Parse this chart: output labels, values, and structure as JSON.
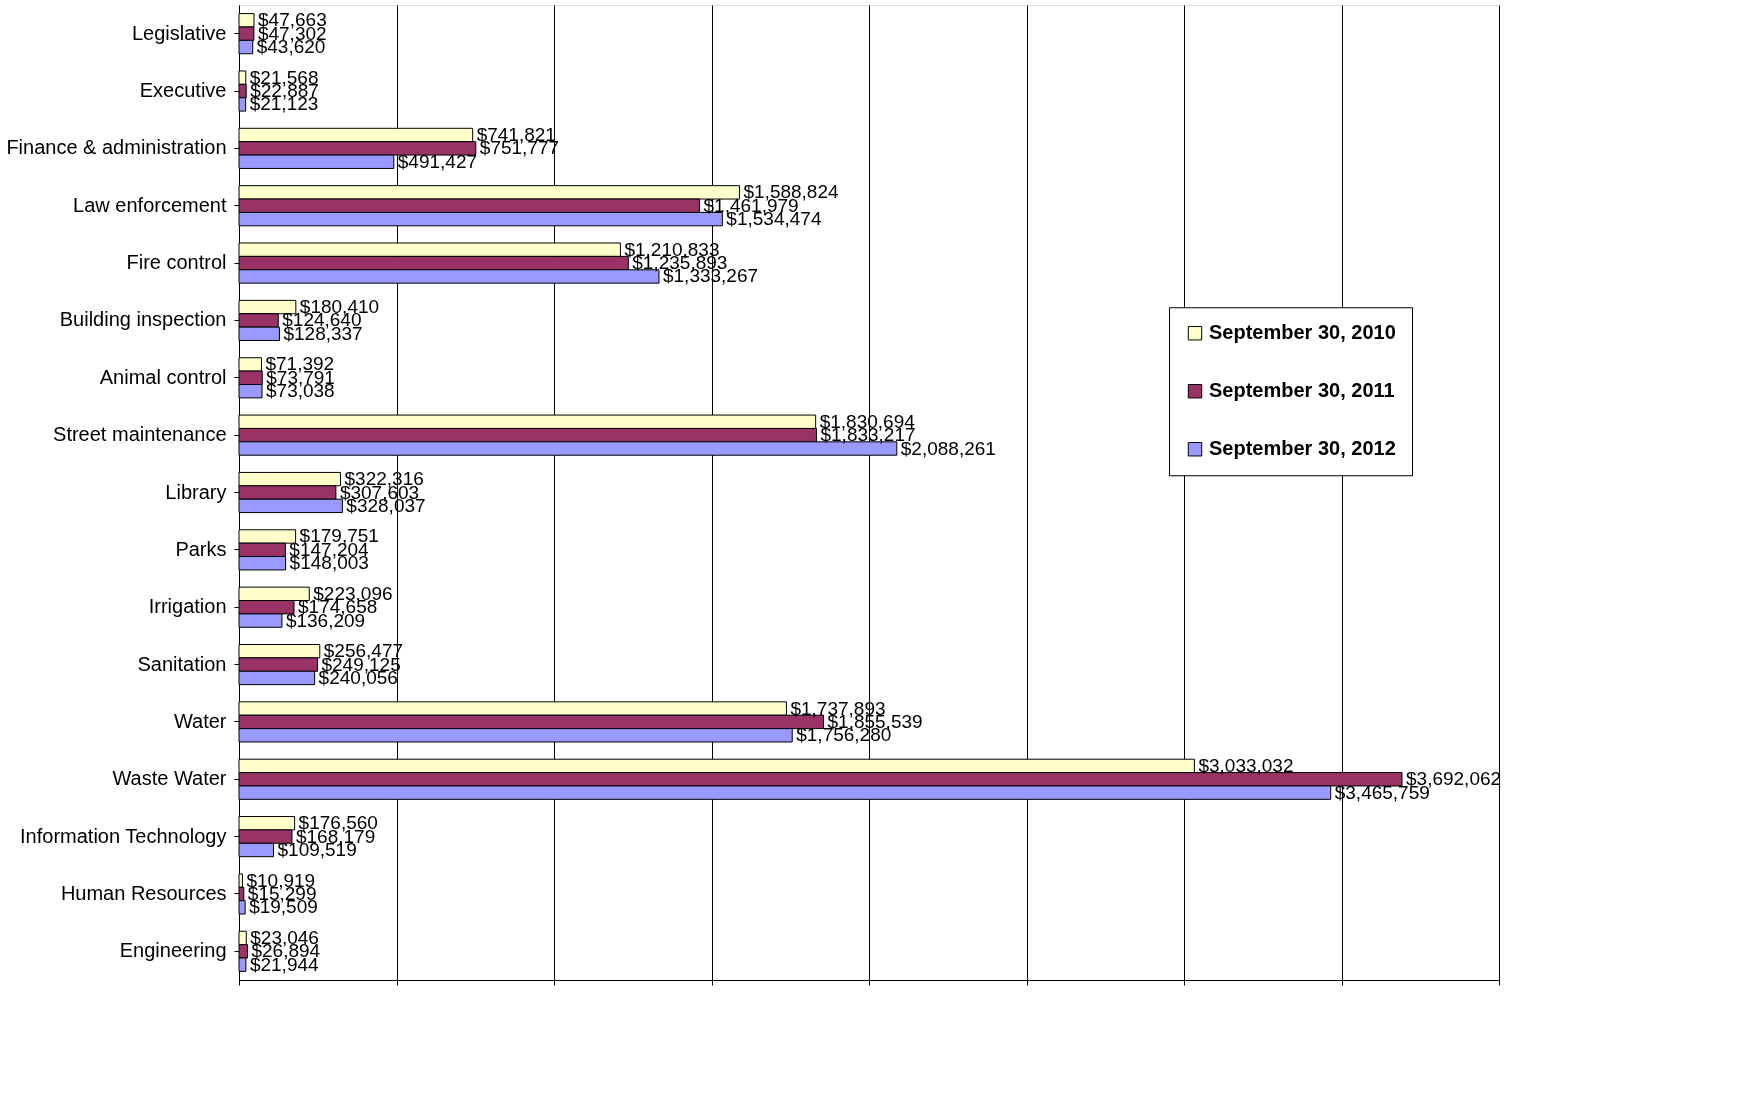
{
  "chart_data": {
    "type": "bar",
    "orientation": "horizontal",
    "categories": [
      "Legislative",
      "Executive",
      "Finance & administration",
      "Law enforcement",
      "Fire control",
      "Building inspection",
      "Animal control",
      "Street maintenance",
      "Library",
      "Parks",
      "Irrigation",
      "Sanitation",
      "Water",
      "Waste Water",
      "Information Technology",
      "Human Resources",
      "Engineering"
    ],
    "series": [
      {
        "name": "September 30, 2010",
        "color": "#ffffcc",
        "values": [
          47663,
          21568,
          741821,
          1588824,
          1210833,
          180410,
          71392,
          1830694,
          322316,
          179751,
          223096,
          256477,
          1737893,
          3033032,
          176560,
          10919,
          23046
        ],
        "value_labels": [
          "$47,663",
          "$21,568",
          "$741,821",
          "$1,588,824",
          "$1,210,833",
          "$180,410",
          "$71,392",
          "$1,830,694",
          "$322,316",
          "$179,751",
          "$223,096",
          "$256,477",
          "$1,737,893",
          "$3,033,032",
          "$176,560",
          "$10,919",
          "$23,046"
        ]
      },
      {
        "name": "September 30, 2011",
        "color": "#993366",
        "values": [
          47302,
          22887,
          751777,
          1461979,
          1235893,
          124640,
          73791,
          1833217,
          307603,
          147204,
          174658,
          249125,
          1855539,
          3692062,
          168179,
          15299,
          26894
        ],
        "value_labels": [
          "$47,302",
          "$22,887",
          "$751,777",
          "$1,461,979",
          "$1,235,893",
          "$124,640",
          "$73,791",
          "$1,833,217",
          "$307,603",
          "$147,204",
          "$174,658",
          "$249,125",
          "$1,855,539",
          "$3,692,062",
          "$168,179",
          "$15,299",
          "$26,894"
        ]
      },
      {
        "name": "September 30, 2012",
        "color": "#9999ff",
        "values": [
          43620,
          21123,
          491427,
          1534474,
          1333267,
          128337,
          73038,
          2088261,
          328037,
          148003,
          136209,
          240056,
          1756280,
          3465759,
          109519,
          19509,
          21944
        ],
        "value_labels": [
          "$43,620",
          "$21,123",
          "$491,427",
          "$1,534,474",
          "$1,333,267",
          "$128,337",
          "$73,038",
          "$2,088,261",
          "$328,037",
          "$148,003",
          "$136,209",
          "$240,056",
          "$1,756,280",
          "$3,465,759",
          "$109,519",
          "$19,509",
          "$21,944"
        ]
      }
    ],
    "xlim": [
      0,
      4000000
    ],
    "xticks": [
      {
        "value": 0,
        "label": null
      },
      {
        "value": 500000,
        "label": null
      },
      {
        "value": 1000000,
        "label": null
      },
      {
        "value": 1500000,
        "label": null
      },
      {
        "value": 2000000,
        "label": null
      },
      {
        "value": 2500000,
        "label": null
      },
      {
        "value": 3000000,
        "label": null
      },
      {
        "value": 3500000,
        "label": null
      },
      {
        "value": 4000000,
        "label": null
      }
    ],
    "tick_labels": "y",
    "grid": "x",
    "legend": "right"
  }
}
